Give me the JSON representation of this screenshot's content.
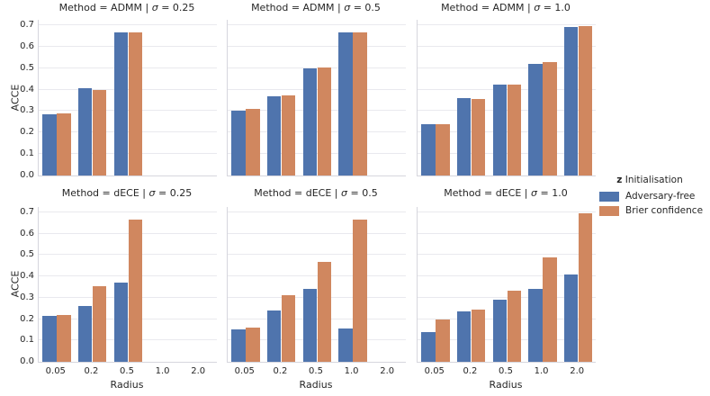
{
  "figure": {
    "background": "#ffffff",
    "text_color": "#262626",
    "grid_color": "#e9e9ee",
    "spine_color": "#d6d6dd"
  },
  "chart_data": {
    "type": "bar",
    "facet": {
      "row_variable": "Method",
      "row_values": [
        "ADMM",
        "dECE"
      ],
      "col_variable": "σ",
      "col_values": [
        "0.25",
        "0.5",
        "1.0"
      ]
    },
    "categories": [
      "0.05",
      "0.2",
      "0.5",
      "1.0",
      "2.0"
    ],
    "xlabel": "Radius",
    "ylabel": "ACCE",
    "ylim": [
      0.0,
      0.725
    ],
    "yticks": [
      "0.0",
      "0.1",
      "0.2",
      "0.3",
      "0.4",
      "0.5",
      "0.6",
      "0.7"
    ],
    "grid": "horizontal",
    "series_colors": [
      "#4f74ad",
      "#d0875f"
    ],
    "legend": {
      "position": "right-center",
      "title": "z Initialisation",
      "title_bold": "z",
      "title_rest": " Initialisation",
      "entries": [
        {
          "label": "Adversary-free",
          "color": "#4f74ad"
        },
        {
          "label": "Brier confidence",
          "color": "#d0875f"
        }
      ]
    },
    "subplots": [
      {
        "title": "Method = ADMM | σ = 0.25",
        "method": "ADMM",
        "sigma": "0.25",
        "series": [
          {
            "name": "Adversary-free",
            "values": [
              0.285,
              0.405,
              0.665,
              null,
              null
            ]
          },
          {
            "name": "Brier confidence",
            "values": [
              0.29,
              0.4,
              0.665,
              null,
              null
            ]
          }
        ]
      },
      {
        "title": "Method = ADMM | σ = 0.5",
        "method": "ADMM",
        "sigma": "0.5",
        "series": [
          {
            "name": "Adversary-free",
            "values": [
              0.3,
              0.37,
              0.5,
              0.665,
              null
            ]
          },
          {
            "name": "Brier confidence",
            "values": [
              0.31,
              0.375,
              0.505,
              0.665,
              null
            ]
          }
        ]
      },
      {
        "title": "Method = ADMM | σ = 1.0",
        "method": "ADMM",
        "sigma": "1.0",
        "series": [
          {
            "name": "Adversary-free",
            "values": [
              0.24,
              0.36,
              0.425,
              0.52,
              0.69
            ]
          },
          {
            "name": "Brier confidence",
            "values": [
              0.24,
              0.355,
              0.425,
              0.53,
              0.695
            ]
          }
        ]
      },
      {
        "title": "Method = dECE | σ = 0.25",
        "method": "dECE",
        "sigma": "0.25",
        "series": [
          {
            "name": "Adversary-free",
            "values": [
              0.215,
              0.26,
              0.37,
              null,
              null
            ]
          },
          {
            "name": "Brier confidence",
            "values": [
              0.22,
              0.355,
              0.665,
              null,
              null
            ]
          }
        ]
      },
      {
        "title": "Method = dECE | σ = 0.5",
        "method": "dECE",
        "sigma": "0.5",
        "series": [
          {
            "name": "Adversary-free",
            "values": [
              0.15,
              0.24,
              0.34,
              0.155,
              null
            ]
          },
          {
            "name": "Brier confidence",
            "values": [
              0.16,
              0.31,
              0.47,
              0.665,
              null
            ]
          }
        ]
      },
      {
        "title": "Method = dECE | σ = 1.0",
        "method": "dECE",
        "sigma": "1.0",
        "series": [
          {
            "name": "Adversary-free",
            "values": [
              0.14,
              0.235,
              0.29,
              0.34,
              0.41
            ]
          },
          {
            "name": "Brier confidence",
            "values": [
              0.2,
              0.245,
              0.335,
              0.49,
              0.695
            ]
          }
        ]
      }
    ]
  }
}
